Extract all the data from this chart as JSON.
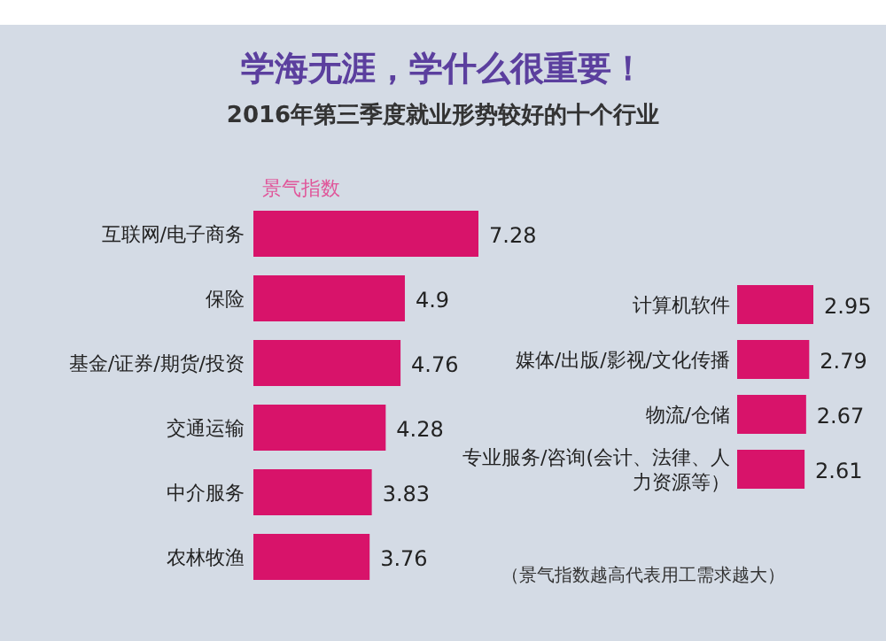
{
  "chart_data": [
    {
      "type": "bar",
      "orientation": "horizontal",
      "title": "学海无涯，学什么很重要！",
      "subtitle": "2016年第三季度就业形势较好的十个行业",
      "xlabel": "景气指数",
      "categories": [
        "互联网/电子商务",
        "保险",
        "基金/证券/期货/投资",
        "交通运输",
        "中介服务",
        "农林牧渔"
      ],
      "values": [
        7.28,
        4.9,
        4.76,
        4.28,
        3.83,
        3.76
      ],
      "color": "#d8136a",
      "data_labels": true
    },
    {
      "type": "bar",
      "orientation": "horizontal",
      "categories": [
        "计算机软件",
        "媒体/出版/影视/文化传播",
        "物流/仓储",
        "专业服务/咨询(会计、法律、人力资源等）"
      ],
      "values": [
        2.95,
        2.79,
        2.67,
        2.61
      ],
      "color": "#d8136a",
      "data_labels": true,
      "annotations": [
        "（景气指数越高代表用工需求越大）"
      ]
    }
  ]
}
